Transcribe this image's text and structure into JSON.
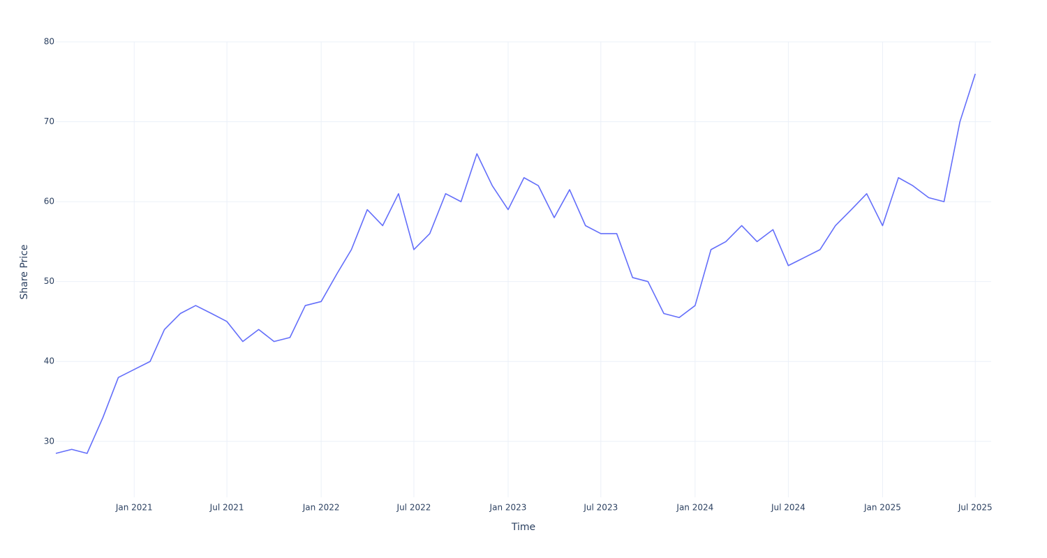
{
  "chart_data": {
    "type": "line",
    "x_label": "Time",
    "y_label": "Share Price",
    "x": [
      "2020-08",
      "2020-09",
      "2020-10",
      "2020-11",
      "2020-12",
      "2021-01",
      "2021-02",
      "2021-03",
      "2021-04",
      "2021-05",
      "2021-06",
      "2021-07",
      "2021-08",
      "2021-09",
      "2021-10",
      "2021-11",
      "2021-12",
      "2022-01",
      "2022-02",
      "2022-03",
      "2022-04",
      "2022-05",
      "2022-06",
      "2022-07",
      "2022-08",
      "2022-09",
      "2022-10",
      "2022-11",
      "2022-12",
      "2023-01",
      "2023-02",
      "2023-03",
      "2023-04",
      "2023-05",
      "2023-06",
      "2023-07",
      "2023-08",
      "2023-09",
      "2023-10",
      "2023-11",
      "2023-12",
      "2024-01",
      "2024-02",
      "2024-03",
      "2024-04",
      "2024-05",
      "2024-06",
      "2024-07",
      "2024-08",
      "2024-09",
      "2024-10",
      "2024-11",
      "2024-12",
      "2025-01",
      "2025-02",
      "2025-03",
      "2025-04",
      "2025-05",
      "2025-06",
      "2025-07"
    ],
    "series": [
      {
        "color": "#636efa",
        "values": [
          28.5,
          29,
          28.5,
          33,
          38,
          39,
          40,
          44,
          46,
          47,
          46,
          45,
          42.5,
          44,
          42.5,
          43,
          47,
          47.5,
          51,
          54,
          59,
          57,
          61,
          54,
          56,
          61,
          60,
          66,
          62,
          59,
          63,
          62,
          58,
          61.5,
          57,
          56,
          56,
          50.5,
          50,
          46,
          45.5,
          47,
          54,
          55,
          57,
          55,
          56.5,
          52,
          53,
          54,
          57,
          59,
          61,
          57,
          63,
          62,
          60.5,
          60,
          70,
          76
        ]
      }
    ],
    "xlim": [
      "2020-08",
      "2025-08"
    ],
    "xticks": [
      {
        "value": "2021-01",
        "label": "Jan 2021"
      },
      {
        "value": "2021-07",
        "label": "Jul 2021"
      },
      {
        "value": "2022-01",
        "label": "Jan 2022"
      },
      {
        "value": "2022-07",
        "label": "Jul 2022"
      },
      {
        "value": "2023-01",
        "label": "Jan 2023"
      },
      {
        "value": "2023-07",
        "label": "Jul 2023"
      },
      {
        "value": "2024-01",
        "label": "Jan 2024"
      },
      {
        "value": "2024-07",
        "label": "Jul 2024"
      },
      {
        "value": "2025-01",
        "label": "Jan 2025"
      },
      {
        "value": "2025-07",
        "label": "Jul 2025"
      }
    ],
    "ylim": [
      23,
      80
    ],
    "yticks": [
      30,
      40,
      50,
      60,
      70,
      80
    ],
    "grid": true
  }
}
